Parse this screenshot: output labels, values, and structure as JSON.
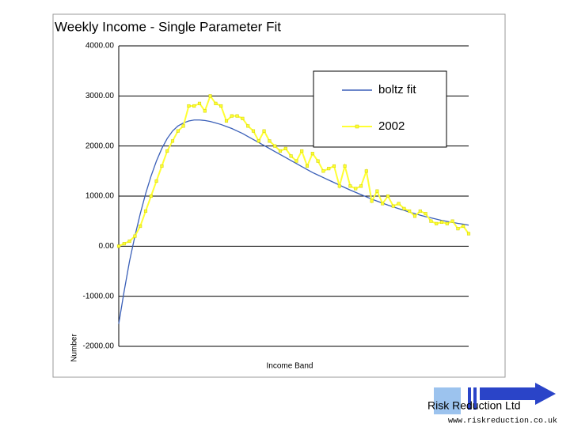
{
  "chart_data": {
    "type": "line",
    "title": "Weekly Income - Single Parameter Fit",
    "xlabel": "Income Band",
    "ylabel": "Number",
    "categories": [
      null,
      null,
      null,
      null,
      null,
      null,
      null,
      null,
      null,
      null,
      null,
      null,
      null,
      null,
      null,
      null,
      null,
      null,
      null,
      null,
      null,
      null,
      null,
      null,
      null,
      null,
      null,
      null,
      null,
      null,
      null,
      null,
      null,
      null,
      null,
      null,
      null,
      null,
      null,
      null,
      null,
      null,
      null,
      null,
      null,
      null,
      null,
      null,
      null,
      null,
      null,
      null,
      null,
      null,
      null,
      null,
      null,
      null,
      null,
      null,
      null,
      null,
      null,
      null,
      null,
      null
    ],
    "series": [
      {
        "name": "boltz fit",
        "color": "#3a5fb8",
        "values": [
          -1550,
          -900,
          -300,
          200,
          650,
          1050,
          1400,
          1700,
          1950,
          2150,
          2300,
          2400,
          2460,
          2500,
          2520,
          2520,
          2510,
          2490,
          2460,
          2430,
          2390,
          2350,
          2300,
          2250,
          2190,
          2130,
          2070,
          2010,
          1950,
          1890,
          1830,
          1770,
          1710,
          1650,
          1590,
          1530,
          1470,
          1420,
          1370,
          1320,
          1270,
          1220,
          1170,
          1120,
          1075,
          1030,
          985,
          940,
          900,
          860,
          820,
          785,
          750,
          715,
          680,
          650,
          620,
          590,
          565,
          540,
          515,
          495,
          475,
          455,
          440,
          420
        ]
      },
      {
        "name": "2002",
        "color": "#ffff33",
        "values": [
          0,
          50,
          100,
          200,
          400,
          700,
          1000,
          1300,
          1600,
          1900,
          2100,
          2300,
          2400,
          2800,
          2800,
          2850,
          2700,
          3000,
          2850,
          2800,
          2500,
          2600,
          2600,
          2550,
          2400,
          2300,
          2100,
          2300,
          2100,
          2000,
          1900,
          1950,
          1800,
          1700,
          1900,
          1600,
          1850,
          1700,
          1500,
          1550,
          1600,
          1200,
          1600,
          1200,
          1150,
          1200,
          1500,
          900,
          1100,
          850,
          1000,
          800,
          850,
          750,
          700,
          600,
          700,
          650,
          500,
          450,
          480,
          450,
          500,
          350,
          400,
          250
        ]
      }
    ],
    "ylim": [
      -2000,
      4000
    ],
    "yticks": [
      {
        "value": 4000,
        "label": "4000.00"
      },
      {
        "value": 3000,
        "label": "3000.00"
      },
      {
        "value": 2000,
        "label": "2000.00"
      },
      {
        "value": 1000,
        "label": "1000.00"
      },
      {
        "value": 0,
        "label": "0.00"
      },
      {
        "value": -1000,
        "label": "-1000.00"
      },
      {
        "value": -2000,
        "label": "-2000.00"
      }
    ],
    "grid": true,
    "legend": "top-right"
  },
  "footer": {
    "company": "Risk Reduction Ltd",
    "url": "www.riskreduction.co.uk"
  }
}
